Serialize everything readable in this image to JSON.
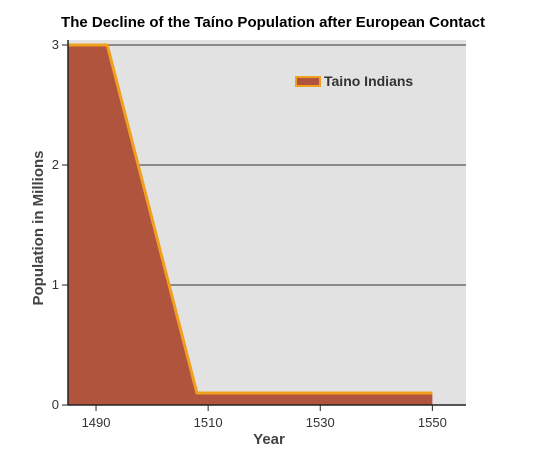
{
  "chart_data": {
    "type": "area",
    "title": "The Decline of the Taíno Population after European Contact",
    "xlabel": "Year",
    "ylabel": "Population in Millions",
    "x_ticks": [
      1490,
      1510,
      1530,
      1550
    ],
    "y_ticks": [
      0,
      1,
      2,
      3
    ],
    "xlim": [
      1485,
      1556
    ],
    "ylim": [
      0,
      3
    ],
    "grid": "horizontal",
    "legend_position": "top-right",
    "series": [
      {
        "name": "Taino Indians",
        "x": [
          1485,
          1492,
          1508,
          1550
        ],
        "y": [
          3.0,
          3.0,
          0.1,
          0.1
        ],
        "fill_color": "#b0543e",
        "line_color": "#f0a01e"
      }
    ],
    "colors": {
      "plot_background": "#e2e2e2",
      "fill": "#b0543e",
      "line": "#f0a01e"
    }
  }
}
